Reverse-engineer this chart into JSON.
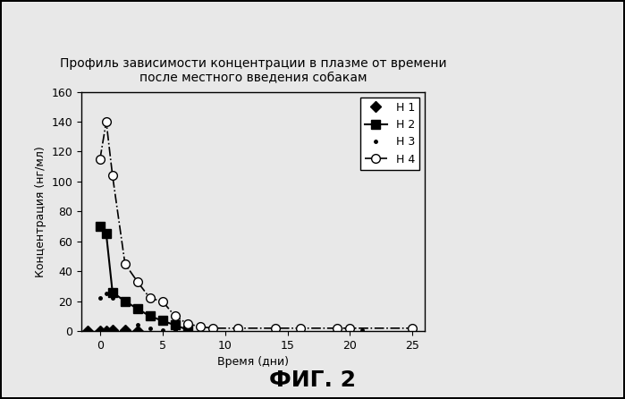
{
  "title_line1": "Профиль зависимости концентрации в плазме от времени",
  "title_line2": "после местного введения собакам",
  "xlabel": "Время (дни)",
  "ylabel": "Концентрация (нг/мл)",
  "fig_label": "ФИГ. 2",
  "ylim": [
    0,
    160
  ],
  "xlim": [
    -1.5,
    26
  ],
  "yticks": [
    0,
    20,
    40,
    60,
    80,
    100,
    120,
    140,
    160
  ],
  "xticks": [
    0,
    5,
    10,
    15,
    20,
    25
  ],
  "series": [
    {
      "label": "Н 1",
      "x": [
        -1,
        0,
        0.5,
        1,
        2,
        3
      ],
      "y": [
        0,
        0,
        0,
        1,
        1,
        0
      ],
      "color": "black",
      "linestyle": "none",
      "marker": "D",
      "markersize": 6,
      "linewidth": 0,
      "markerfacecolor": "black"
    },
    {
      "label": "Н 2",
      "x": [
        0,
        0.5,
        1,
        2,
        3,
        4,
        5,
        6,
        7
      ],
      "y": [
        70,
        65,
        26,
        20,
        15,
        10,
        7,
        4,
        1
      ],
      "color": "black",
      "linestyle": "-",
      "marker": "s",
      "markersize": 7,
      "linewidth": 1.5,
      "markerfacecolor": "black"
    },
    {
      "label": "Н 3",
      "x": [
        0,
        0.5,
        1,
        2,
        3,
        4,
        5,
        6,
        8,
        9,
        11,
        14,
        16,
        19,
        20,
        21,
        25
      ],
      "y": [
        22,
        25,
        22,
        20,
        4,
        2,
        1,
        1,
        1,
        1,
        1,
        1,
        1,
        1,
        1,
        1,
        1
      ],
      "color": "black",
      "linestyle": "none",
      "marker": ".",
      "markersize": 5,
      "linewidth": 0,
      "markerfacecolor": "black"
    },
    {
      "label": "Н 4",
      "x": [
        0,
        0.5,
        1,
        2,
        3,
        4,
        5,
        6,
        7,
        8,
        9,
        11,
        14,
        16,
        19,
        20,
        25
      ],
      "y": [
        115,
        140,
        104,
        45,
        33,
        22,
        20,
        10,
        5,
        3,
        2,
        2,
        2,
        2,
        2,
        2,
        2
      ],
      "color": "black",
      "linestyle": "-.",
      "marker": "o",
      "markersize": 7,
      "linewidth": 1.2,
      "markerfacecolor": "white"
    }
  ],
  "background_color": "#e8e8e8",
  "plot_bg_color": "#e8e8e8",
  "title_fontsize": 10,
  "label_fontsize": 9,
  "tick_fontsize": 9,
  "legend_fontsize": 9,
  "fig_label_fontsize": 18
}
